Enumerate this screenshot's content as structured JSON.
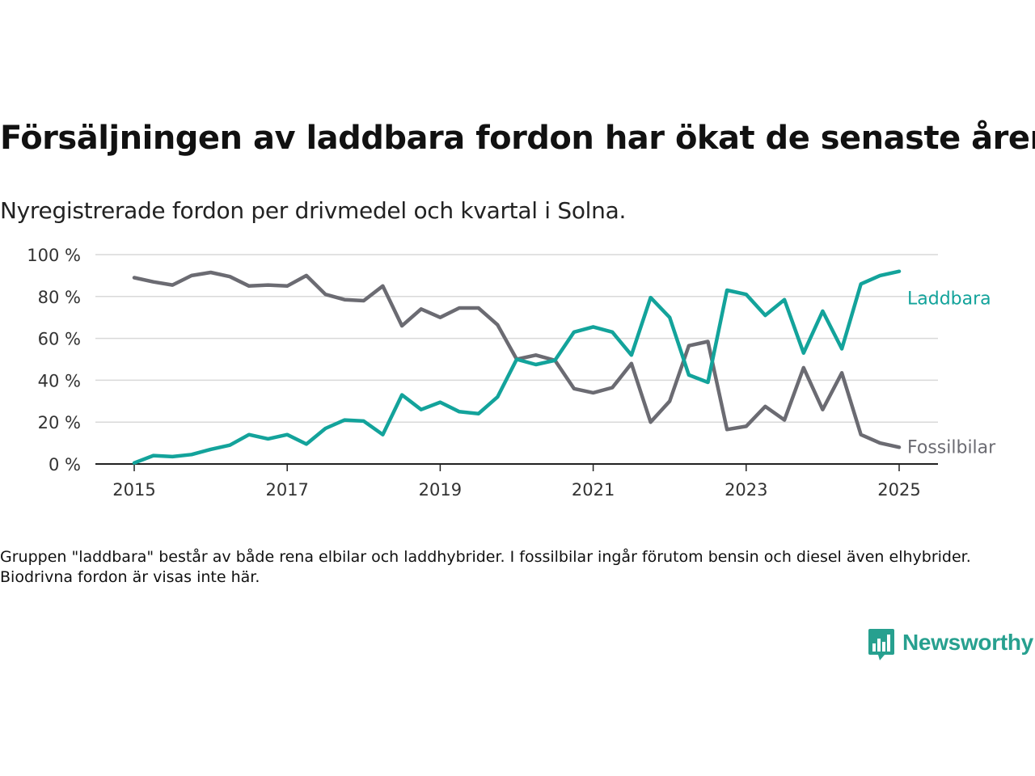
{
  "header": {
    "title": "Försäljningen av laddbara fordon har ökat de senaste åren",
    "subtitle": "Nyregistrerade fordon per drivmedel och kvartal i Solna."
  },
  "footnote": "Gruppen \"laddbara\" består av både rena elbilar och laddhybrider. I fossilbilar ingår förutom bensin och diesel även elhybrider. Biodrivna fordon är visas inte här.",
  "brand": {
    "name": "Newsworthy",
    "logo_icon": "newsworthy-bar-chart-icon"
  },
  "chart_data": {
    "type": "line",
    "title": "Försäljningen av laddbara fordon har ökat de senaste åren",
    "subtitle": "Nyregistrerade fordon per drivmedel och kvartal i Solna.",
    "xlabel": "",
    "ylabel": "",
    "x": [
      2015.0,
      2015.25,
      2015.5,
      2015.75,
      2016.0,
      2016.25,
      2016.5,
      2016.75,
      2017.0,
      2017.25,
      2017.5,
      2017.75,
      2018.0,
      2018.25,
      2018.5,
      2018.75,
      2019.0,
      2019.25,
      2019.5,
      2019.75,
      2020.0,
      2020.25,
      2020.5,
      2020.75,
      2021.0,
      2021.25,
      2021.5,
      2021.75,
      2022.0,
      2022.25,
      2022.5,
      2022.75,
      2023.0,
      2023.25,
      2023.5,
      2023.75,
      2024.0,
      2024.25,
      2024.5,
      2024.75,
      2025.0
    ],
    "xlim": [
      2014.5,
      2025.5
    ],
    "ylim": [
      0,
      100
    ],
    "x_ticks": [
      2015,
      2017,
      2019,
      2021,
      2023,
      2025
    ],
    "x_tick_labels": [
      "2015",
      "2017",
      "2019",
      "2021",
      "2023",
      "2025"
    ],
    "y_ticks": [
      0,
      20,
      40,
      60,
      80,
      100
    ],
    "y_tick_labels": [
      "0 %",
      "20 %",
      "40 %",
      "60 %",
      "80 %",
      "100 %"
    ],
    "grid": "horizontal",
    "legend": "direct labels at line ends",
    "series": [
      {
        "name": "Laddbara",
        "color": "#13a39b",
        "values": [
          0.5,
          4,
          3.5,
          4.5,
          7,
          9,
          14,
          12,
          14,
          9.5,
          17,
          21,
          20.5,
          14,
          33,
          26,
          29.5,
          25,
          24,
          32,
          50,
          47.5,
          49.5,
          63,
          65.5,
          63,
          52,
          79.5,
          70,
          42.5,
          39,
          83,
          81,
          71,
          78.5,
          53,
          73,
          55,
          86,
          90,
          92
        ]
      },
      {
        "name": "Fossilbilar",
        "color": "#6b6b72",
        "values": [
          89,
          87,
          85.5,
          90,
          91.5,
          89.5,
          85,
          85.5,
          85,
          90,
          81,
          78.5,
          78,
          85,
          66,
          74,
          70,
          74.5,
          74.5,
          66.5,
          50,
          52,
          49.5,
          36,
          34,
          36.5,
          48,
          20,
          30,
          56.5,
          58.5,
          16.5,
          18,
          27.5,
          21,
          46,
          26,
          43.5,
          14,
          10,
          8
        ]
      }
    ]
  }
}
